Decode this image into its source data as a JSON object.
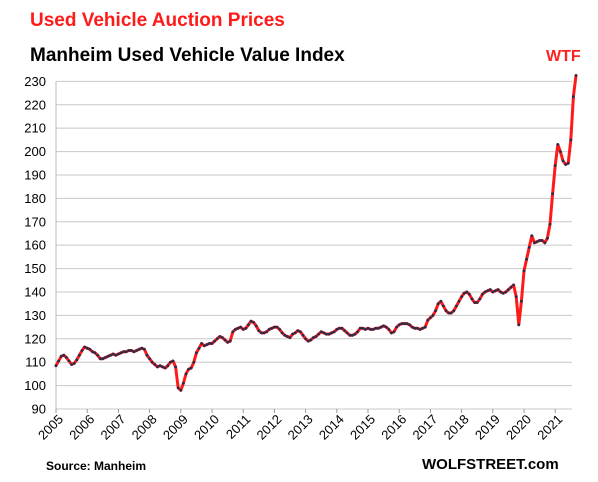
{
  "chart_data": {
    "type": "line",
    "title": "Used Vehicle Auction Prices",
    "subtitle": "Manheim Used Vehicle Value Index",
    "annotation": "WTF",
    "source": "Source: Manheim",
    "brand": "WOLFSTREET.com",
    "xlabel": "",
    "ylabel": "",
    "ylim": [
      90,
      235
    ],
    "yticks": [
      90,
      100,
      110,
      120,
      130,
      140,
      150,
      160,
      170,
      180,
      190,
      200,
      210,
      220,
      230
    ],
    "xticks": [
      "2005",
      "2006",
      "2007",
      "2008",
      "2009",
      "2010",
      "2011",
      "2012",
      "2013",
      "2014",
      "2015",
      "2016",
      "2017",
      "2018",
      "2019",
      "2020",
      "2021"
    ],
    "grid": "horizontal",
    "colors": {
      "line": "#ff1a1a",
      "markers": "#2b2b4a",
      "title": "#ff1a1a",
      "annotation": "#ff2020",
      "grid": "#c8c8c8"
    },
    "series": [
      {
        "x_start": "2005-01",
        "frequency": "monthly",
        "values": [
          108.5,
          110.5,
          112.5,
          113.0,
          112.0,
          110.5,
          109.0,
          109.5,
          111.0,
          113.0,
          115.0,
          116.5,
          116.0,
          115.5,
          114.5,
          114.0,
          113.0,
          111.5,
          111.5,
          112.0,
          112.5,
          113.0,
          113.5,
          113.0,
          113.5,
          114.0,
          114.5,
          114.5,
          115.0,
          115.0,
          114.5,
          115.0,
          115.5,
          116.0,
          115.5,
          113.0,
          111.5,
          110.0,
          109.0,
          108.0,
          108.5,
          108.0,
          107.5,
          108.5,
          110.0,
          110.5,
          108.0,
          99.0,
          98.0,
          101.0,
          105.0,
          107.0,
          107.5,
          110.0,
          114.0,
          116.0,
          118.0,
          117.0,
          117.5,
          118.0,
          118.0,
          119.0,
          120.0,
          121.0,
          120.5,
          119.5,
          118.5,
          119.0,
          123.0,
          124.0,
          124.5,
          125.0,
          124.0,
          124.5,
          126.0,
          127.5,
          127.0,
          125.5,
          123.5,
          122.5,
          122.5,
          123.0,
          124.0,
          124.5,
          125.0,
          125.0,
          124.0,
          122.5,
          121.5,
          121.0,
          120.5,
          122.0,
          122.5,
          123.5,
          123.0,
          121.5,
          120.0,
          119.0,
          119.5,
          120.5,
          121.0,
          122.0,
          123.0,
          122.5,
          122.0,
          122.0,
          122.5,
          123.0,
          124.0,
          124.5,
          124.5,
          123.5,
          122.5,
          121.5,
          121.5,
          122.0,
          123.0,
          124.5,
          124.5,
          124.0,
          124.5,
          124.0,
          124.0,
          124.5,
          124.5,
          125.0,
          125.5,
          125.0,
          124.0,
          122.5,
          123.0,
          125.0,
          126.0,
          126.5,
          126.5,
          126.5,
          126.0,
          125.0,
          124.5,
          124.5,
          124.0,
          124.5,
          125.0,
          128.0,
          129.0,
          130.0,
          132.0,
          135.0,
          136.0,
          134.0,
          132.0,
          131.0,
          131.0,
          132.0,
          134.0,
          136.0,
          138.0,
          139.5,
          140.0,
          139.0,
          137.0,
          135.5,
          135.5,
          137.0,
          139.0,
          140.0,
          140.5,
          141.0,
          140.0,
          140.5,
          141.0,
          140.0,
          139.5,
          140.0,
          141.0,
          142.0,
          143.0,
          138.0,
          126.0,
          136.0,
          149.0,
          154.0,
          159.0,
          164.0,
          161.0,
          161.5,
          162.0,
          162.0,
          161.0,
          163.0,
          169.0,
          182.0,
          194.0,
          203.0,
          200.0,
          196.0,
          194.5,
          195.0,
          205.0,
          223.5,
          232.5
        ]
      }
    ]
  }
}
